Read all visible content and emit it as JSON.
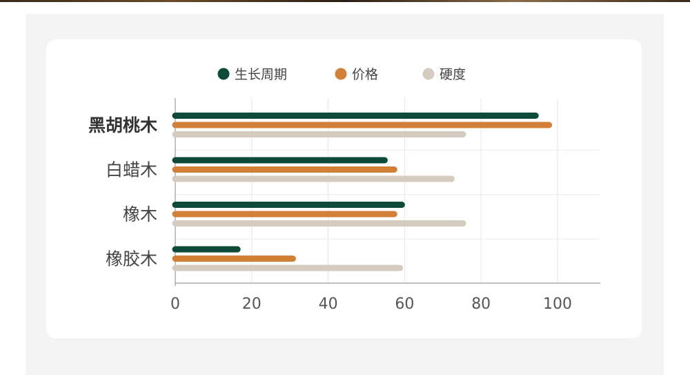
{
  "chart_data": {
    "type": "bar",
    "orientation": "horizontal",
    "categories": [
      "黑胡桃木",
      "白蜡木",
      "橡木",
      "橡胶木"
    ],
    "highlighted_category": "黑胡桃木",
    "series": [
      {
        "name": "生长周期",
        "color": "#0d4a3a",
        "values": [
          95,
          55.5,
          60,
          17
        ]
      },
      {
        "name": "价格",
        "color": "#d28038",
        "values": [
          98.5,
          58,
          58,
          31.5
        ]
      },
      {
        "name": "硬度",
        "color": "#d5ccbf",
        "values": [
          76,
          73,
          76,
          59.5
        ]
      }
    ],
    "xlim": [
      0,
      110
    ],
    "xticks": [
      0,
      20,
      40,
      60,
      80,
      100
    ],
    "grid": true,
    "legend_position": "top-center"
  }
}
